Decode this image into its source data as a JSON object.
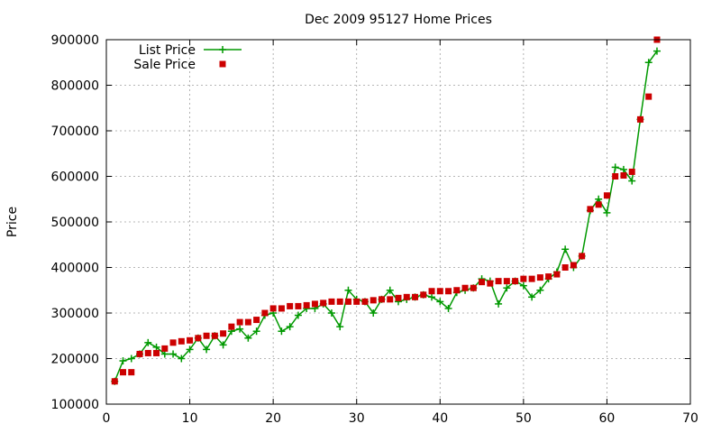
{
  "chart_data": {
    "type": "line",
    "title": "Dec 2009 95127 Home Prices",
    "xlabel": "",
    "ylabel": "Price",
    "xlim": [
      0,
      70
    ],
    "ylim": [
      100000,
      900000
    ],
    "x_ticks": [
      "0",
      "10",
      "20",
      "30",
      "40",
      "50",
      "60",
      "70"
    ],
    "y_ticks": [
      "100000",
      "200000",
      "300000",
      "400000",
      "500000",
      "600000",
      "700000",
      "800000",
      "900000"
    ],
    "grid": true,
    "legend_position": "top-left",
    "series": [
      {
        "name": "List Price",
        "marker": "plus",
        "color": "#009900",
        "x": [
          1,
          2,
          3,
          4,
          5,
          6,
          7,
          8,
          9,
          10,
          11,
          12,
          13,
          14,
          15,
          16,
          17,
          18,
          19,
          20,
          21,
          22,
          23,
          24,
          25,
          26,
          27,
          28,
          29,
          30,
          31,
          32,
          33,
          34,
          35,
          36,
          37,
          38,
          39,
          40,
          41,
          42,
          43,
          44,
          45,
          46,
          47,
          48,
          49,
          50,
          51,
          52,
          53,
          54,
          55,
          56,
          57,
          58,
          59,
          60,
          61,
          62,
          63,
          64,
          65,
          66
        ],
        "values": [
          150000,
          195000,
          200000,
          210000,
          235000,
          225000,
          210000,
          210000,
          200000,
          220000,
          245000,
          220000,
          250000,
          230000,
          260000,
          265000,
          245000,
          260000,
          295000,
          300000,
          260000,
          270000,
          295000,
          310000,
          310000,
          320000,
          300000,
          270000,
          350000,
          330000,
          325000,
          300000,
          330000,
          350000,
          325000,
          330000,
          335000,
          340000,
          335000,
          325000,
          310000,
          345000,
          350000,
          355000,
          375000,
          370000,
          320000,
          355000,
          370000,
          360000,
          335000,
          350000,
          375000,
          390000,
          440000,
          400000,
          425000,
          525000,
          550000,
          520000,
          620000,
          615000,
          590000,
          725000,
          850000,
          875000
        ]
      },
      {
        "name": "Sale Price",
        "marker": "square",
        "color": "#cc0000",
        "x": [
          1,
          2,
          3,
          4,
          5,
          6,
          7,
          8,
          9,
          10,
          11,
          12,
          13,
          14,
          15,
          16,
          17,
          18,
          19,
          20,
          21,
          22,
          23,
          24,
          25,
          26,
          27,
          28,
          29,
          30,
          31,
          32,
          33,
          34,
          35,
          36,
          37,
          38,
          39,
          40,
          41,
          42,
          43,
          44,
          45,
          46,
          47,
          48,
          49,
          50,
          51,
          52,
          53,
          54,
          55,
          56,
          57,
          58,
          59,
          60,
          61,
          62,
          63,
          64,
          65,
          66
        ],
        "values": [
          150000,
          170000,
          170000,
          210000,
          212000,
          212000,
          222000,
          235000,
          238000,
          240000,
          245000,
          250000,
          250000,
          255000,
          270000,
          280000,
          280000,
          285000,
          300000,
          310000,
          310000,
          315000,
          315000,
          317000,
          320000,
          322000,
          325000,
          325000,
          325000,
          325000,
          325000,
          328000,
          330000,
          330000,
          333000,
          335000,
          335000,
          340000,
          348000,
          348000,
          348000,
          350000,
          355000,
          355000,
          368000,
          365000,
          370000,
          370000,
          370000,
          375000,
          375000,
          378000,
          380000,
          385000,
          400000,
          405000,
          425000,
          528000,
          538000,
          558000,
          600000,
          602000,
          610000,
          725000,
          775000,
          900000
        ]
      }
    ]
  }
}
